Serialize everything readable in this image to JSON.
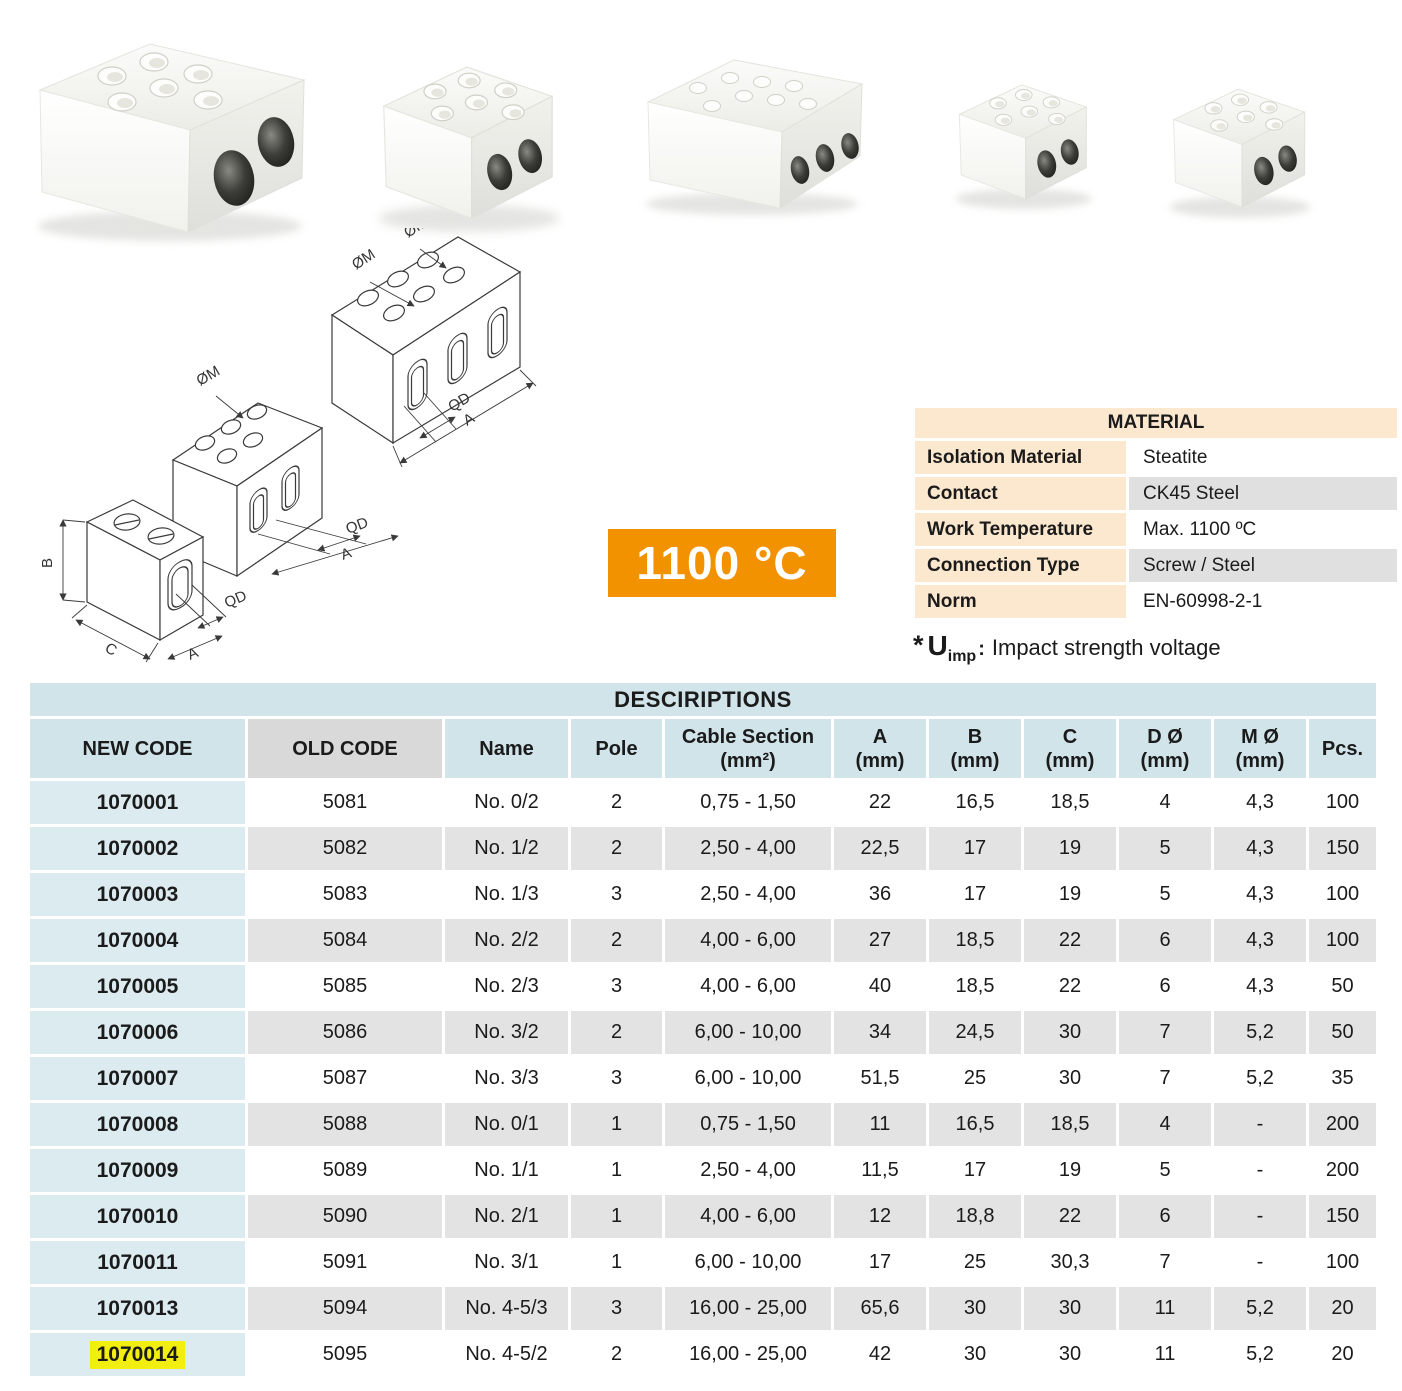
{
  "photos": {
    "items": [
      "porcelain-terminal-block-2pole-large",
      "porcelain-terminal-block-2pole-medium",
      "porcelain-terminal-block-3pole-wide",
      "porcelain-terminal-block-2pole-small-a",
      "porcelain-terminal-block-2pole-small-b"
    ]
  },
  "drawings": {
    "labels": {
      "om": "ØM",
      "qd": "QD",
      "a": "A",
      "b": "B",
      "c": "C"
    }
  },
  "badge": {
    "text": "1100 °C",
    "bg": "#F39200"
  },
  "material": {
    "title": "MATERIAL",
    "rows": [
      {
        "label": "Isolation Material",
        "value": "Steatite"
      },
      {
        "label": "Contact",
        "value": "CK45 Steel"
      },
      {
        "label": "Work Temperature",
        "value": "Max. 1100 ºC"
      },
      {
        "label": "Connection Type",
        "value": "Screw / Steel"
      },
      {
        "label": "Norm",
        "value": "EN-60998-2-1"
      }
    ]
  },
  "note": {
    "star": "*",
    "symbol": "U",
    "sub": "imp",
    "colon": ":",
    "text": "Impact strength voltage"
  },
  "table": {
    "title": "DESCIRIPTIONS",
    "columns": [
      {
        "label": "NEW CODE"
      },
      {
        "label": "OLD CODE",
        "gray": true
      },
      {
        "label": "Name"
      },
      {
        "label": "Pole"
      },
      {
        "label": "Cable Section",
        "sub": "(mm²)"
      },
      {
        "label": "A",
        "sub": "(mm)"
      },
      {
        "label": "B",
        "sub": "(mm)"
      },
      {
        "label": "C",
        "sub": "(mm)"
      },
      {
        "label": "D Ø",
        "sub": "(mm)"
      },
      {
        "label": "M Ø",
        "sub": "(mm)"
      },
      {
        "label": "Pcs."
      }
    ],
    "rows": [
      [
        "1070001",
        "5081",
        "No. 0/2",
        "2",
        "0,75 - 1,50",
        "22",
        "16,5",
        "18,5",
        "4",
        "4,3",
        "100"
      ],
      [
        "1070002",
        "5082",
        "No. 1/2",
        "2",
        "2,50 - 4,00",
        "22,5",
        "17",
        "19",
        "5",
        "4,3",
        "150"
      ],
      [
        "1070003",
        "5083",
        "No. 1/3",
        "3",
        "2,50 - 4,00",
        "36",
        "17",
        "19",
        "5",
        "4,3",
        "100"
      ],
      [
        "1070004",
        "5084",
        "No. 2/2",
        "2",
        "4,00 - 6,00",
        "27",
        "18,5",
        "22",
        "6",
        "4,3",
        "100"
      ],
      [
        "1070005",
        "5085",
        "No. 2/3",
        "3",
        "4,00 - 6,00",
        "40",
        "18,5",
        "22",
        "6",
        "4,3",
        "50"
      ],
      [
        "1070006",
        "5086",
        "No. 3/2",
        "2",
        "6,00 - 10,00",
        "34",
        "24,5",
        "30",
        "7",
        "5,2",
        "50"
      ],
      [
        "1070007",
        "5087",
        "No. 3/3",
        "3",
        "6,00 - 10,00",
        "51,5",
        "25",
        "30",
        "7",
        "5,2",
        "35"
      ],
      [
        "1070008",
        "5088",
        "No. 0/1",
        "1",
        "0,75 - 1,50",
        "11",
        "16,5",
        "18,5",
        "4",
        "-",
        "200"
      ],
      [
        "1070009",
        "5089",
        "No. 1/1",
        "1",
        "2,50 - 4,00",
        "11,5",
        "17",
        "19",
        "5",
        "-",
        "200"
      ],
      [
        "1070010",
        "5090",
        "No. 2/1",
        "1",
        "4,00 - 6,00",
        "12",
        "18,8",
        "22",
        "6",
        "-",
        "150"
      ],
      [
        "1070011",
        "5091",
        "No. 3/1",
        "1",
        "6,00 - 10,00",
        "17",
        "25",
        "30,3",
        "7",
        "-",
        "100"
      ],
      [
        "1070013",
        "5094",
        "No. 4-5/3",
        "3",
        "16,00 - 25,00",
        "65,6",
        "30",
        "30",
        "11",
        "5,2",
        "20"
      ],
      [
        "1070014",
        "5095",
        "No. 4-5/2",
        "2",
        "16,00 - 25,00",
        "42",
        "30",
        "30",
        "11",
        "5,2",
        "20"
      ]
    ],
    "highlight_code": "1070014",
    "colors": {
      "header_blue": "#d0e4ea",
      "header_gray": "#d9d9d9",
      "row_gray": "#e3e3e3",
      "new_code_blue": "#dcebf0",
      "highlight_yellow": "#f2ee0f",
      "badge_orange": "#F39200",
      "material_peach": "#fce8cf"
    }
  }
}
